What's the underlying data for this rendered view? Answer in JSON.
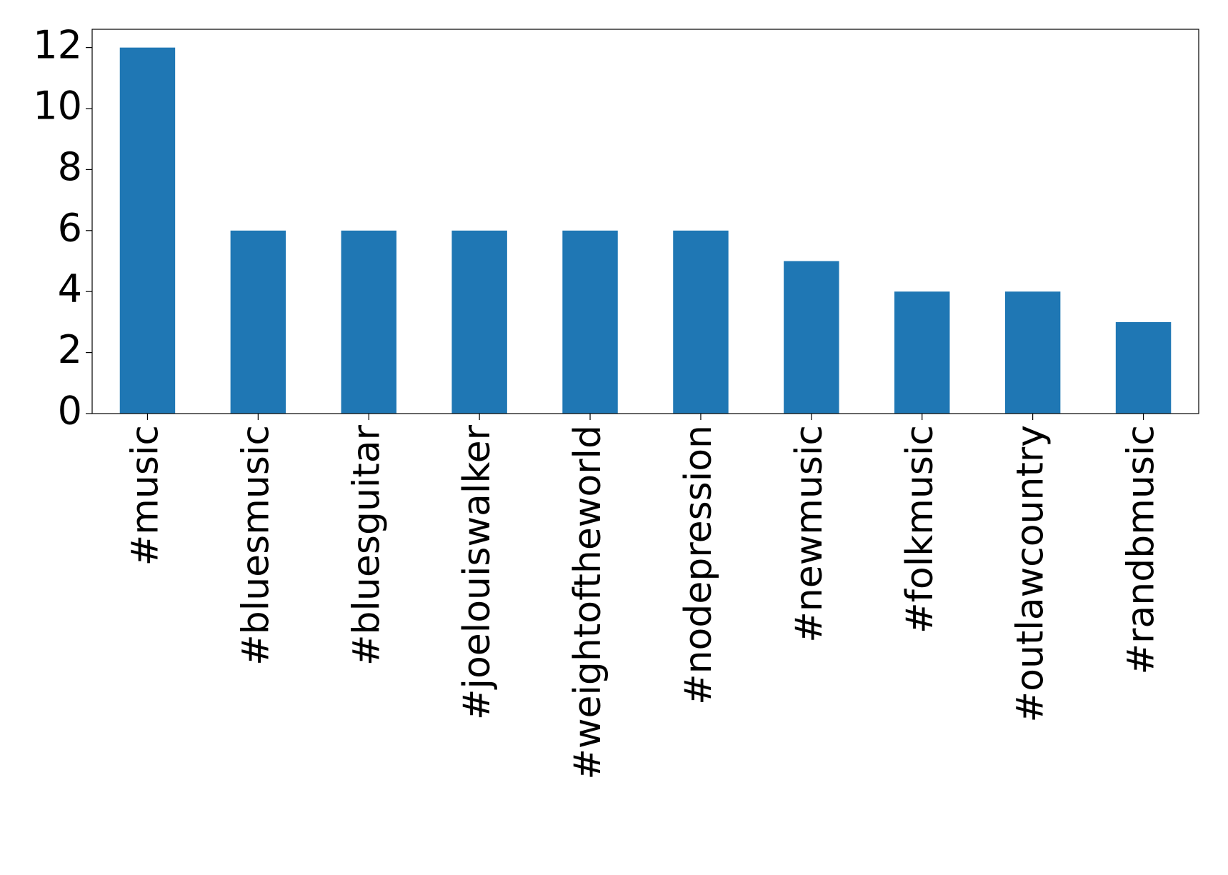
{
  "chart_data": {
    "type": "bar",
    "categories": [
      "#music",
      "#bluesmusic",
      "#bluesguitar",
      "#joelouiswalker",
      "#weightoftheworld",
      "#nodepression",
      "#newmusic",
      "#folkmusic",
      "#outlawcountry",
      "#randbmusic"
    ],
    "values": [
      12,
      6,
      6,
      6,
      6,
      6,
      5,
      4,
      4,
      3
    ],
    "color": "#1f77b4",
    "ylim": [
      0,
      12.6
    ],
    "yticks": [
      0,
      2,
      4,
      6,
      8,
      10,
      12
    ]
  }
}
